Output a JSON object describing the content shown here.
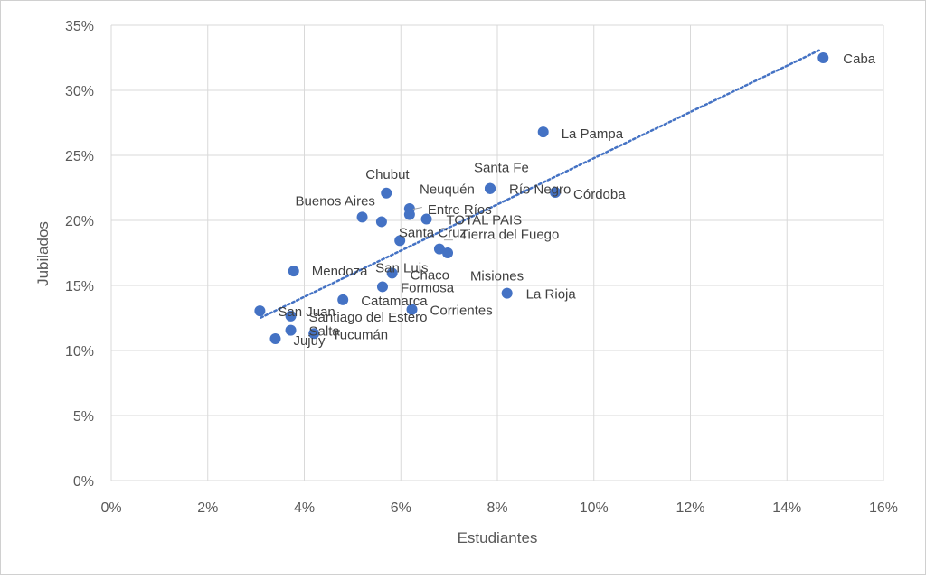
{
  "chart_data": {
    "type": "scatter",
    "title": "",
    "xlabel": "Estudiantes",
    "ylabel": "Jubilados",
    "xlim": [
      0,
      0.16
    ],
    "ylim": [
      0,
      0.35
    ],
    "x_ticks": [
      0,
      0.02,
      0.04,
      0.06,
      0.08,
      0.1,
      0.12,
      0.14,
      0.16
    ],
    "y_ticks": [
      0,
      0.05,
      0.1,
      0.15,
      0.2,
      0.25,
      0.3,
      0.35
    ],
    "x_tick_labels": [
      "0%",
      "2%",
      "4%",
      "6%",
      "8%",
      "10%",
      "12%",
      "14%",
      "16%"
    ],
    "y_tick_labels": [
      "0%",
      "5%",
      "10%",
      "15%",
      "20%",
      "25%",
      "30%",
      "35%"
    ],
    "grid": true,
    "legend": "none",
    "marker_color": "#4472C4",
    "trendline": {
      "type": "linear",
      "style": "dotted",
      "color": "#4472C4",
      "x_range": [
        0.031,
        0.147
      ]
    },
    "points": [
      {
        "name": "Caba",
        "x": 0.1475,
        "y": 0.325
      },
      {
        "name": "La Pampa",
        "x": 0.0895,
        "y": 0.268
      },
      {
        "name": "Santa Fe",
        "x": 0.0785,
        "y": 0.2245
      },
      {
        "name": "Río Negro",
        "x": 0.0785,
        "y": 0.2245
      },
      {
        "name": "Córdoba",
        "x": 0.092,
        "y": 0.2215
      },
      {
        "name": "Neuquén",
        "x": 0.0785,
        "y": 0.2245
      },
      {
        "name": "Chubut",
        "x": 0.057,
        "y": 0.221
      },
      {
        "name": "Entre Ríos",
        "x": 0.0618,
        "y": 0.209
      },
      {
        "name": "Buenos Aires",
        "x": 0.052,
        "y": 0.2025
      },
      {
        "name": "Santa Cruz",
        "x": 0.056,
        "y": 0.199
      },
      {
        "name": "TOTAL PAIS",
        "x": 0.0653,
        "y": 0.201
      },
      {
        "name": "Tierra del Fuego",
        "x": 0.0618,
        "y": 0.2045
      },
      {
        "name": "San Luis",
        "x": 0.0598,
        "y": 0.1845
      },
      {
        "name": "Misiones",
        "x": 0.068,
        "y": 0.178
      },
      {
        "name": "",
        "x": 0.0697,
        "y": 0.175
      },
      {
        "name": "Mendoza",
        "x": 0.0378,
        "y": 0.161
      },
      {
        "name": "Chaco",
        "x": 0.0582,
        "y": 0.1595
      },
      {
        "name": "Formosa",
        "x": 0.0562,
        "y": 0.149
      },
      {
        "name": "La Rioja",
        "x": 0.082,
        "y": 0.144
      },
      {
        "name": "Catamarca",
        "x": 0.048,
        "y": 0.139
      },
      {
        "name": "Corrientes",
        "x": 0.0623,
        "y": 0.1315
      },
      {
        "name": "San Juan",
        "x": 0.0308,
        "y": 0.1305
      },
      {
        "name": "Santiago del Estero",
        "x": 0.0372,
        "y": 0.1265
      },
      {
        "name": "Salta",
        "x": 0.0372,
        "y": 0.1155
      },
      {
        "name": "Tucumán",
        "x": 0.042,
        "y": 0.113
      },
      {
        "name": "Jujuy",
        "x": 0.034,
        "y": 0.109
      }
    ]
  }
}
